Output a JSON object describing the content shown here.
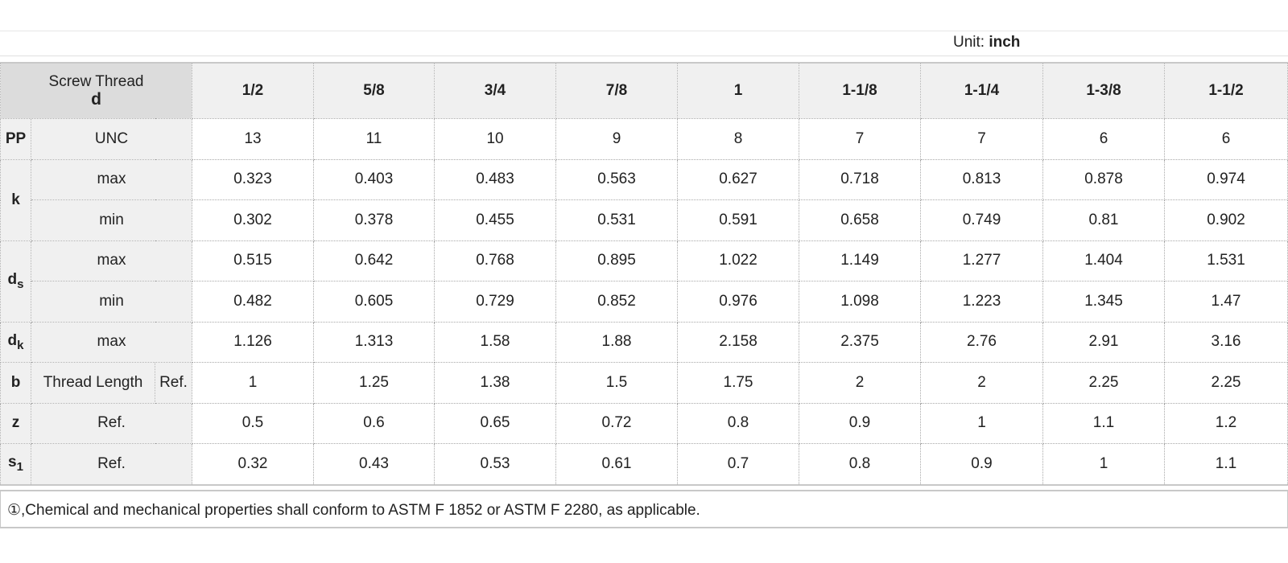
{
  "unit": {
    "label": "Unit:",
    "value": "inch"
  },
  "header": {
    "title": "Screw Thread",
    "symbol": "d",
    "sizes": [
      "1/2",
      "5/8",
      "3/4",
      "7/8",
      "1",
      "1-1/8",
      "1-1/4",
      "1-3/8",
      "1-1/2"
    ]
  },
  "rows": {
    "pp": {
      "symbol": "PP",
      "label": "UNC",
      "values": [
        "13",
        "11",
        "10",
        "9",
        "8",
        "7",
        "7",
        "6",
        "6"
      ]
    },
    "k_max": {
      "symbol": "k",
      "label": "max",
      "values": [
        "0.323",
        "0.403",
        "0.483",
        "0.563",
        "0.627",
        "0.718",
        "0.813",
        "0.878",
        "0.974"
      ]
    },
    "k_min": {
      "label": "min",
      "values": [
        "0.302",
        "0.378",
        "0.455",
        "0.531",
        "0.591",
        "0.658",
        "0.749",
        "0.81",
        "0.902"
      ]
    },
    "ds_max": {
      "symbol": "d",
      "symbol_sub": "s",
      "label": "max",
      "values": [
        "0.515",
        "0.642",
        "0.768",
        "0.895",
        "1.022",
        "1.149",
        "1.277",
        "1.404",
        "1.531"
      ]
    },
    "ds_min": {
      "label": "min",
      "values": [
        "0.482",
        "0.605",
        "0.729",
        "0.852",
        "0.976",
        "1.098",
        "1.223",
        "1.345",
        "1.47"
      ]
    },
    "dk_max": {
      "symbol": "d",
      "symbol_sub": "k",
      "label": "max",
      "values": [
        "1.126",
        "1.313",
        "1.58",
        "1.88",
        "2.158",
        "2.375",
        "2.76",
        "2.91",
        "3.16"
      ]
    },
    "b": {
      "symbol": "b",
      "label": "Thread Length",
      "label2": "Ref.",
      "values": [
        "1",
        "1.25",
        "1.38",
        "1.5",
        "1.75",
        "2",
        "2",
        "2.25",
        "2.25"
      ]
    },
    "z": {
      "symbol": "z",
      "label": "Ref.",
      "values": [
        "0.5",
        "0.6",
        "0.65",
        "0.72",
        "0.8",
        "0.9",
        "1",
        "1.1",
        "1.2"
      ]
    },
    "s1": {
      "symbol": "s",
      "symbol_sub": "1",
      "label": "Ref.",
      "values": [
        "0.32",
        "0.43",
        "0.53",
        "0.61",
        "0.7",
        "0.8",
        "0.9",
        "1",
        "1.1"
      ]
    }
  },
  "note": "①,Chemical and mechanical properties shall conform to ASTM F 1852 or ASTM F 2280, as applicable."
}
